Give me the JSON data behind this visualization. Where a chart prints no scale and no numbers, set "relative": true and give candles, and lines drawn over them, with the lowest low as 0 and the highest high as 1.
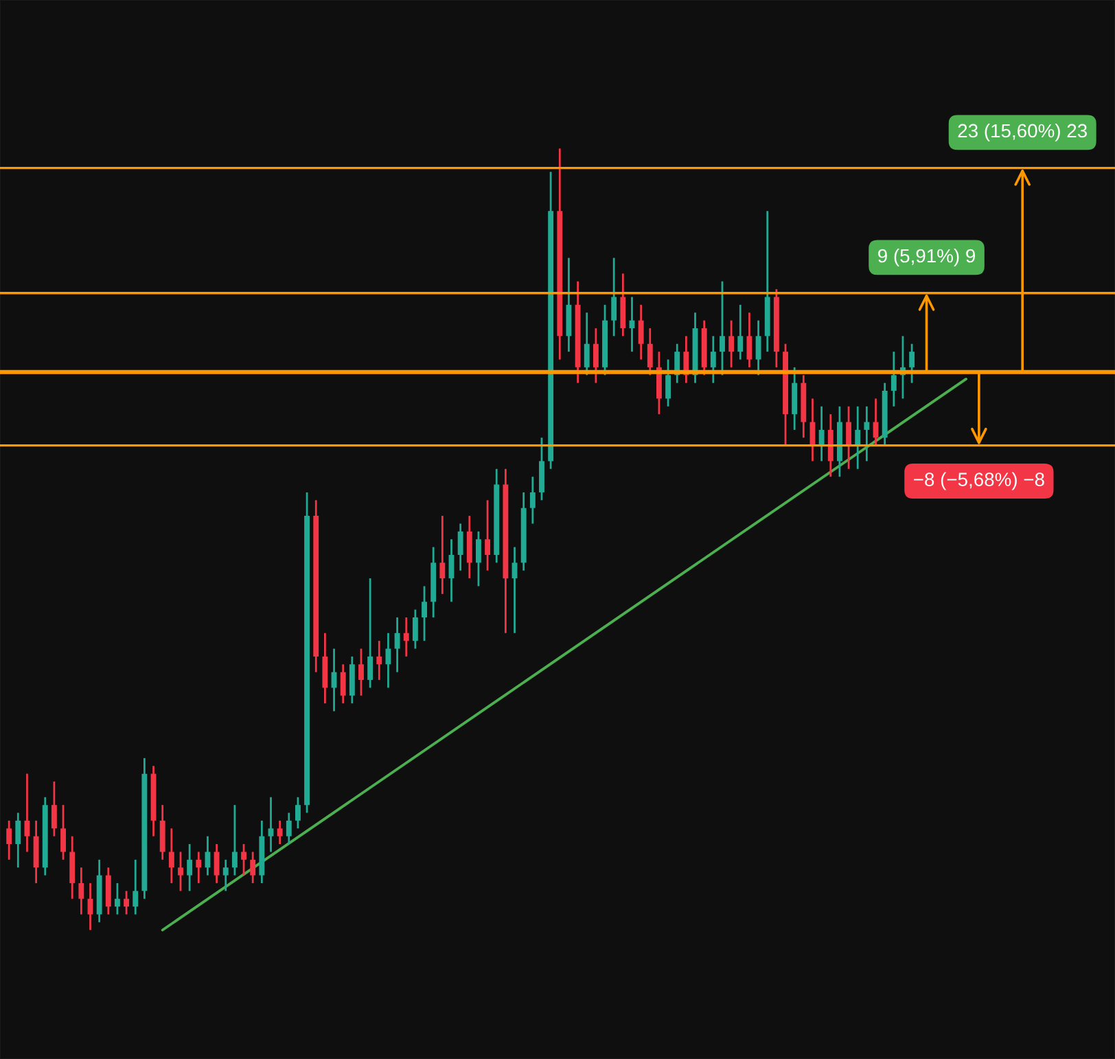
{
  "chart_data": {
    "type": "candlestick",
    "relative": true,
    "categories": [
      null,
      null,
      null,
      null,
      null,
      null,
      null,
      null,
      null,
      null,
      null,
      null,
      null,
      null,
      null,
      null,
      null,
      null,
      null,
      null,
      null,
      null,
      null,
      null,
      null,
      null,
      null,
      null,
      null,
      null,
      null,
      null,
      null,
      null,
      null,
      null,
      null,
      null,
      null,
      null,
      null,
      null,
      null,
      null,
      null,
      null,
      null,
      null,
      null,
      null,
      null,
      null,
      null,
      null,
      null,
      null,
      null,
      null,
      null,
      null,
      null,
      null,
      null,
      null,
      null,
      null,
      null,
      null,
      null,
      null,
      null,
      null,
      null,
      null,
      null,
      null,
      null,
      null,
      null,
      null,
      null,
      null,
      null,
      null,
      null,
      null,
      null,
      null,
      null,
      null,
      null,
      null,
      null,
      null,
      null,
      null,
      null,
      null,
      null,
      null,
      null,
      null,
      null,
      null,
      null,
      null,
      null,
      null,
      null,
      null,
      null,
      null,
      null,
      null,
      null,
      null,
      null,
      null,
      null,
      null,
      null,
      null,
      null
    ],
    "ohlc": [
      [
        0.13,
        0.14,
        0.09,
        0.11
      ],
      [
        0.11,
        0.15,
        0.08,
        0.14
      ],
      [
        0.14,
        0.2,
        0.1,
        0.12
      ],
      [
        0.12,
        0.14,
        0.06,
        0.08
      ],
      [
        0.08,
        0.17,
        0.07,
        0.16
      ],
      [
        0.16,
        0.19,
        0.12,
        0.13
      ],
      [
        0.13,
        0.16,
        0.09,
        0.1
      ],
      [
        0.1,
        0.12,
        0.04,
        0.06
      ],
      [
        0.06,
        0.08,
        0.02,
        0.04
      ],
      [
        0.04,
        0.06,
        0.0,
        0.02
      ],
      [
        0.02,
        0.09,
        0.01,
        0.07
      ],
      [
        0.07,
        0.08,
        0.02,
        0.03
      ],
      [
        0.03,
        0.06,
        0.02,
        0.04
      ],
      [
        0.04,
        0.05,
        0.02,
        0.03
      ],
      [
        0.03,
        0.09,
        0.02,
        0.05
      ],
      [
        0.05,
        0.22,
        0.04,
        0.2
      ],
      [
        0.2,
        0.21,
        0.12,
        0.14
      ],
      [
        0.14,
        0.16,
        0.09,
        0.1
      ],
      [
        0.1,
        0.13,
        0.06,
        0.08
      ],
      [
        0.08,
        0.1,
        0.05,
        0.07
      ],
      [
        0.07,
        0.11,
        0.05,
        0.09
      ],
      [
        0.09,
        0.1,
        0.06,
        0.08
      ],
      [
        0.08,
        0.12,
        0.07,
        0.1
      ],
      [
        0.1,
        0.11,
        0.06,
        0.07
      ],
      [
        0.07,
        0.09,
        0.05,
        0.08
      ],
      [
        0.08,
        0.16,
        0.07,
        0.1
      ],
      [
        0.1,
        0.11,
        0.07,
        0.09
      ],
      [
        0.09,
        0.1,
        0.06,
        0.07
      ],
      [
        0.07,
        0.14,
        0.06,
        0.12
      ],
      [
        0.12,
        0.17,
        0.1,
        0.13
      ],
      [
        0.13,
        0.14,
        0.11,
        0.12
      ],
      [
        0.12,
        0.15,
        0.11,
        0.14
      ],
      [
        0.14,
        0.17,
        0.13,
        0.16
      ],
      [
        0.16,
        0.56,
        0.15,
        0.53
      ],
      [
        0.53,
        0.55,
        0.33,
        0.35
      ],
      [
        0.35,
        0.38,
        0.29,
        0.31
      ],
      [
        0.31,
        0.36,
        0.28,
        0.33
      ],
      [
        0.33,
        0.34,
        0.29,
        0.3
      ],
      [
        0.3,
        0.35,
        0.29,
        0.34
      ],
      [
        0.34,
        0.36,
        0.3,
        0.32
      ],
      [
        0.32,
        0.45,
        0.31,
        0.35
      ],
      [
        0.35,
        0.37,
        0.32,
        0.34
      ],
      [
        0.34,
        0.38,
        0.31,
        0.36
      ],
      [
        0.36,
        0.4,
        0.33,
        0.38
      ],
      [
        0.38,
        0.4,
        0.35,
        0.37
      ],
      [
        0.37,
        0.41,
        0.36,
        0.4
      ],
      [
        0.4,
        0.44,
        0.37,
        0.42
      ],
      [
        0.42,
        0.49,
        0.4,
        0.47
      ],
      [
        0.47,
        0.53,
        0.43,
        0.45
      ],
      [
        0.45,
        0.5,
        0.42,
        0.48
      ],
      [
        0.48,
        0.52,
        0.46,
        0.51
      ],
      [
        0.51,
        0.53,
        0.45,
        0.47
      ],
      [
        0.47,
        0.51,
        0.44,
        0.5
      ],
      [
        0.5,
        0.55,
        0.46,
        0.48
      ],
      [
        0.48,
        0.59,
        0.47,
        0.57
      ],
      [
        0.57,
        0.59,
        0.38,
        0.45
      ],
      [
        0.45,
        0.49,
        0.38,
        0.47
      ],
      [
        0.47,
        0.56,
        0.46,
        0.54
      ],
      [
        0.54,
        0.58,
        0.52,
        0.56
      ],
      [
        0.56,
        0.63,
        0.55,
        0.6
      ],
      [
        0.6,
        0.97,
        0.59,
        0.92
      ],
      [
        0.92,
        1.0,
        0.73,
        0.76
      ],
      [
        0.76,
        0.86,
        0.74,
        0.8
      ],
      [
        0.8,
        0.83,
        0.7,
        0.72
      ],
      [
        0.72,
        0.79,
        0.71,
        0.75
      ],
      [
        0.75,
        0.77,
        0.7,
        0.72
      ],
      [
        0.72,
        0.8,
        0.71,
        0.78
      ],
      [
        0.78,
        0.86,
        0.76,
        0.81
      ],
      [
        0.81,
        0.84,
        0.76,
        0.77
      ],
      [
        0.77,
        0.81,
        0.74,
        0.78
      ],
      [
        0.78,
        0.8,
        0.73,
        0.75
      ],
      [
        0.75,
        0.77,
        0.71,
        0.72
      ],
      [
        0.72,
        0.74,
        0.66,
        0.68
      ],
      [
        0.68,
        0.73,
        0.67,
        0.71
      ],
      [
        0.71,
        0.75,
        0.7,
        0.74
      ],
      [
        0.74,
        0.76,
        0.7,
        0.71
      ],
      [
        0.71,
        0.79,
        0.7,
        0.77
      ],
      [
        0.77,
        0.78,
        0.71,
        0.72
      ],
      [
        0.72,
        0.76,
        0.7,
        0.74
      ],
      [
        0.74,
        0.83,
        0.71,
        0.76
      ],
      [
        0.76,
        0.78,
        0.72,
        0.74
      ],
      [
        0.74,
        0.8,
        0.73,
        0.76
      ],
      [
        0.76,
        0.79,
        0.72,
        0.73
      ],
      [
        0.73,
        0.78,
        0.71,
        0.76
      ],
      [
        0.76,
        0.92,
        0.74,
        0.81
      ],
      [
        0.81,
        0.82,
        0.72,
        0.74
      ],
      [
        0.74,
        0.75,
        0.62,
        0.66
      ],
      [
        0.66,
        0.72,
        0.64,
        0.7
      ],
      [
        0.7,
        0.71,
        0.63,
        0.65
      ],
      [
        0.65,
        0.68,
        0.6,
        0.62
      ],
      [
        0.62,
        0.67,
        0.6,
        0.64
      ],
      [
        0.64,
        0.66,
        0.58,
        0.6
      ],
      [
        0.6,
        0.67,
        0.58,
        0.65
      ],
      [
        0.65,
        0.67,
        0.59,
        0.62
      ],
      [
        0.62,
        0.67,
        0.59,
        0.64
      ],
      [
        0.64,
        0.67,
        0.6,
        0.65
      ],
      [
        0.65,
        0.68,
        0.62,
        0.63
      ],
      [
        0.63,
        0.7,
        0.62,
        0.69
      ],
      [
        0.69,
        0.74,
        0.67,
        0.71
      ],
      [
        0.71,
        0.76,
        0.68,
        0.72
      ],
      [
        0.72,
        0.75,
        0.7,
        0.74
      ],
      null,
      null,
      null,
      null,
      null,
      null,
      null,
      null,
      null,
      null,
      null,
      null,
      null,
      null,
      null,
      null,
      null,
      null,
      null,
      null,
      null,
      null
    ],
    "series": [
      {
        "type": "line",
        "color": "#4caf50",
        "values": [
          null,
          null,
          null,
          null,
          null,
          null,
          null,
          null,
          null,
          null,
          null,
          null,
          null,
          null,
          null,
          null,
          null,
          0.0,
          null,
          null,
          null,
          null,
          null,
          null,
          null,
          null,
          null,
          null,
          null,
          null,
          null,
          null,
          null,
          null,
          null,
          null,
          null,
          null,
          null,
          null,
          null,
          null,
          null,
          null,
          null,
          null,
          null,
          null,
          null,
          null,
          null,
          null,
          null,
          null,
          null,
          null,
          null,
          null,
          null,
          null,
          null,
          null,
          null,
          null,
          null,
          null,
          null,
          null,
          null,
          null,
          null,
          null,
          null,
          null,
          null,
          null,
          null,
          null,
          null,
          null,
          null,
          null,
          null,
          null,
          null,
          null,
          null,
          null,
          null,
          null,
          null,
          null,
          null,
          null,
          null,
          null,
          null,
          null,
          null,
          null,
          null,
          null,
          null,
          null,
          null,
          null,
          0.705,
          null,
          null,
          null,
          null,
          null,
          null,
          null,
          null,
          null,
          null,
          null,
          null,
          null,
          null,
          null,
          null
        ]
      }
    ],
    "ref_lines": [
      {
        "axis": "y",
        "value": 0.975,
        "color": "#ff9800"
      },
      {
        "axis": "y",
        "value": 0.815,
        "color": "#ff9800"
      },
      {
        "axis": "y",
        "value": 0.714,
        "color": "#ff9800"
      },
      {
        "axis": "y",
        "value": 0.62,
        "color": "#ff9800"
      }
    ],
    "annotations": [
      {
        "text": "23 (15,60%) 23",
        "y": 0.975
      },
      {
        "text": "9 (5,91%) 9",
        "y": 0.815
      },
      {
        "text": "−8 (−5,68%) −8",
        "y": 0.62
      }
    ]
  }
}
